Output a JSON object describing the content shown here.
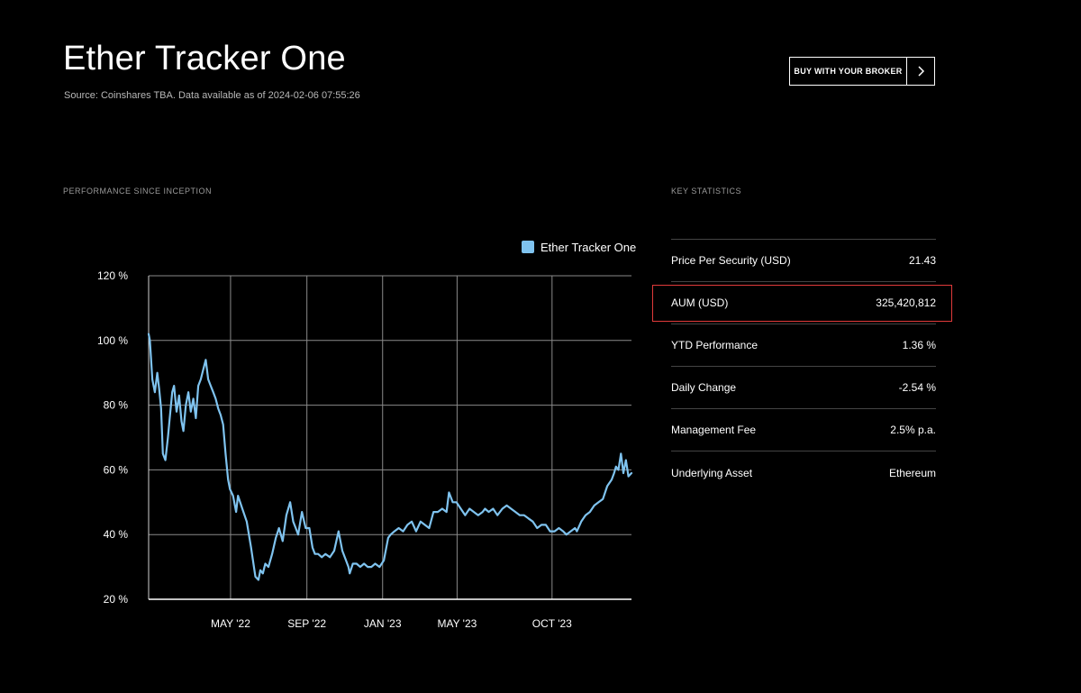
{
  "header": {
    "title": "Ether Tracker One",
    "source_note": "Source: Coinshares TBA. Data available as of 2024-02-06 07:55:26",
    "broker_button_label": "BUY WITH YOUR BROKER",
    "broker_button_icon": "chevron-right-icon"
  },
  "sections": {
    "performance_label": "PERFORMANCE SINCE INCEPTION",
    "stats_label": "KEY STATISTICS"
  },
  "colors": {
    "background": "#000000",
    "series_line": "#7fc3ef",
    "highlight": "#e03a3a"
  },
  "chart_data": {
    "type": "line",
    "title": "",
    "xlabel": "",
    "ylabel": "",
    "ylim": [
      20,
      120
    ],
    "yticks": [
      20,
      40,
      60,
      80,
      100,
      120
    ],
    "ytick_labels": [
      "20 %",
      "40 %",
      "60 %",
      "80 %",
      "100 %",
      "120 %"
    ],
    "xlim": [
      "2021-12-20",
      "2024-02-06"
    ],
    "xticks": [
      "2022-05-01",
      "2022-09-01",
      "2023-01-01",
      "2023-05-01",
      "2023-10-01"
    ],
    "xtick_labels": [
      "MAY '22",
      "SEP '22",
      "JAN '23",
      "MAY '23",
      "OCT '23"
    ],
    "grid": true,
    "legend_position": "top-right",
    "series": [
      {
        "name": "Ether Tracker One",
        "x": [
          "2021-12-20",
          "2021-12-22",
          "2021-12-26",
          "2021-12-30",
          "2022-01-03",
          "2022-01-06",
          "2022-01-09",
          "2022-01-12",
          "2022-01-16",
          "2022-01-20",
          "2022-01-23",
          "2022-01-27",
          "2022-01-30",
          "2022-02-03",
          "2022-02-07",
          "2022-02-11",
          "2022-02-14",
          "2022-02-18",
          "2022-02-22",
          "2022-02-26",
          "2022-03-02",
          "2022-03-06",
          "2022-03-10",
          "2022-03-14",
          "2022-03-18",
          "2022-03-22",
          "2022-03-26",
          "2022-03-30",
          "2022-04-03",
          "2022-04-07",
          "2022-04-11",
          "2022-04-15",
          "2022-04-19",
          "2022-04-23",
          "2022-04-27",
          "2022-04-30",
          "2022-05-05",
          "2022-05-10",
          "2022-05-13",
          "2022-05-20",
          "2022-05-27",
          "2022-06-03",
          "2022-06-10",
          "2022-06-15",
          "2022-06-18",
          "2022-06-22",
          "2022-06-26",
          "2022-07-01",
          "2022-07-07",
          "2022-07-13",
          "2022-07-18",
          "2022-07-24",
          "2022-07-30",
          "2022-08-05",
          "2022-08-10",
          "2022-08-14",
          "2022-08-18",
          "2022-08-24",
          "2022-08-30",
          "2022-09-05",
          "2022-09-10",
          "2022-09-14",
          "2022-09-19",
          "2022-09-25",
          "2022-10-01",
          "2022-10-08",
          "2022-10-15",
          "2022-10-22",
          "2022-10-28",
          "2022-11-03",
          "2022-11-07",
          "2022-11-09",
          "2022-11-14",
          "2022-11-20",
          "2022-11-26",
          "2022-12-02",
          "2022-12-08",
          "2022-12-14",
          "2022-12-20",
          "2022-12-27",
          "2023-01-03",
          "2023-01-10",
          "2023-01-14",
          "2023-01-20",
          "2023-01-27",
          "2023-02-03",
          "2023-02-10",
          "2023-02-17",
          "2023-02-24",
          "2023-03-03",
          "2023-03-10",
          "2023-03-17",
          "2023-03-24",
          "2023-03-31",
          "2023-04-07",
          "2023-04-14",
          "2023-04-18",
          "2023-04-24",
          "2023-04-30",
          "2023-05-07",
          "2023-05-14",
          "2023-05-21",
          "2023-05-28",
          "2023-06-04",
          "2023-06-11",
          "2023-06-15",
          "2023-06-21",
          "2023-06-28",
          "2023-07-05",
          "2023-07-13",
          "2023-07-20",
          "2023-07-27",
          "2023-08-03",
          "2023-08-10",
          "2023-08-17",
          "2023-08-24",
          "2023-08-31",
          "2023-09-07",
          "2023-09-14",
          "2023-09-21",
          "2023-09-28",
          "2023-10-05",
          "2023-10-12",
          "2023-10-19",
          "2023-10-24",
          "2023-10-31",
          "2023-11-07",
          "2023-11-10",
          "2023-11-17",
          "2023-11-24",
          "2023-12-01",
          "2023-12-08",
          "2023-12-15",
          "2023-12-22",
          "2023-12-29",
          "2024-01-05",
          "2024-01-09",
          "2024-01-12",
          "2024-01-16",
          "2024-01-20",
          "2024-01-24",
          "2024-01-28",
          "2024-02-01",
          "2024-02-06"
        ],
        "values": [
          102,
          100,
          88,
          84,
          90,
          85,
          79,
          65,
          63,
          70,
          76,
          84,
          86,
          78,
          83,
          75,
          72,
          80,
          84,
          78,
          82,
          76,
          86,
          88,
          91,
          94,
          88,
          86,
          84,
          82,
          79,
          77,
          74,
          65,
          57,
          54,
          52,
          47,
          52,
          48,
          44,
          36,
          27,
          26,
          29,
          28,
          31,
          30,
          34,
          39,
          42,
          38,
          46,
          50,
          44,
          42,
          40,
          47,
          42,
          42,
          36,
          34,
          34,
          33,
          34,
          33,
          35,
          41,
          35,
          32,
          30,
          28,
          31,
          31,
          30,
          31,
          30,
          30,
          31,
          30,
          32,
          39,
          40,
          41,
          42,
          41,
          43,
          44,
          41,
          44,
          43,
          42,
          47,
          47,
          48,
          47,
          53,
          50,
          50,
          48,
          46,
          48,
          47,
          46,
          47,
          48,
          47,
          48,
          46,
          48,
          49,
          48,
          47,
          46,
          46,
          45,
          44,
          42,
          43,
          43,
          41,
          41,
          42,
          41,
          40,
          41,
          42,
          41,
          44,
          46,
          47,
          49,
          50,
          51,
          55,
          57,
          59,
          61,
          60,
          65,
          59,
          63,
          58,
          59
        ]
      }
    ]
  },
  "stats": [
    {
      "label": "Price Per Security (USD)",
      "value": "21.43"
    },
    {
      "label": "AUM (USD)",
      "value": "325,420,812"
    },
    {
      "label": "YTD Performance",
      "value": "1.36 %"
    },
    {
      "label": "Daily Change",
      "value": "-2.54 %"
    },
    {
      "label": "Management Fee",
      "value": "2.5% p.a."
    },
    {
      "label": "Underlying Asset",
      "value": "Ethereum"
    }
  ]
}
